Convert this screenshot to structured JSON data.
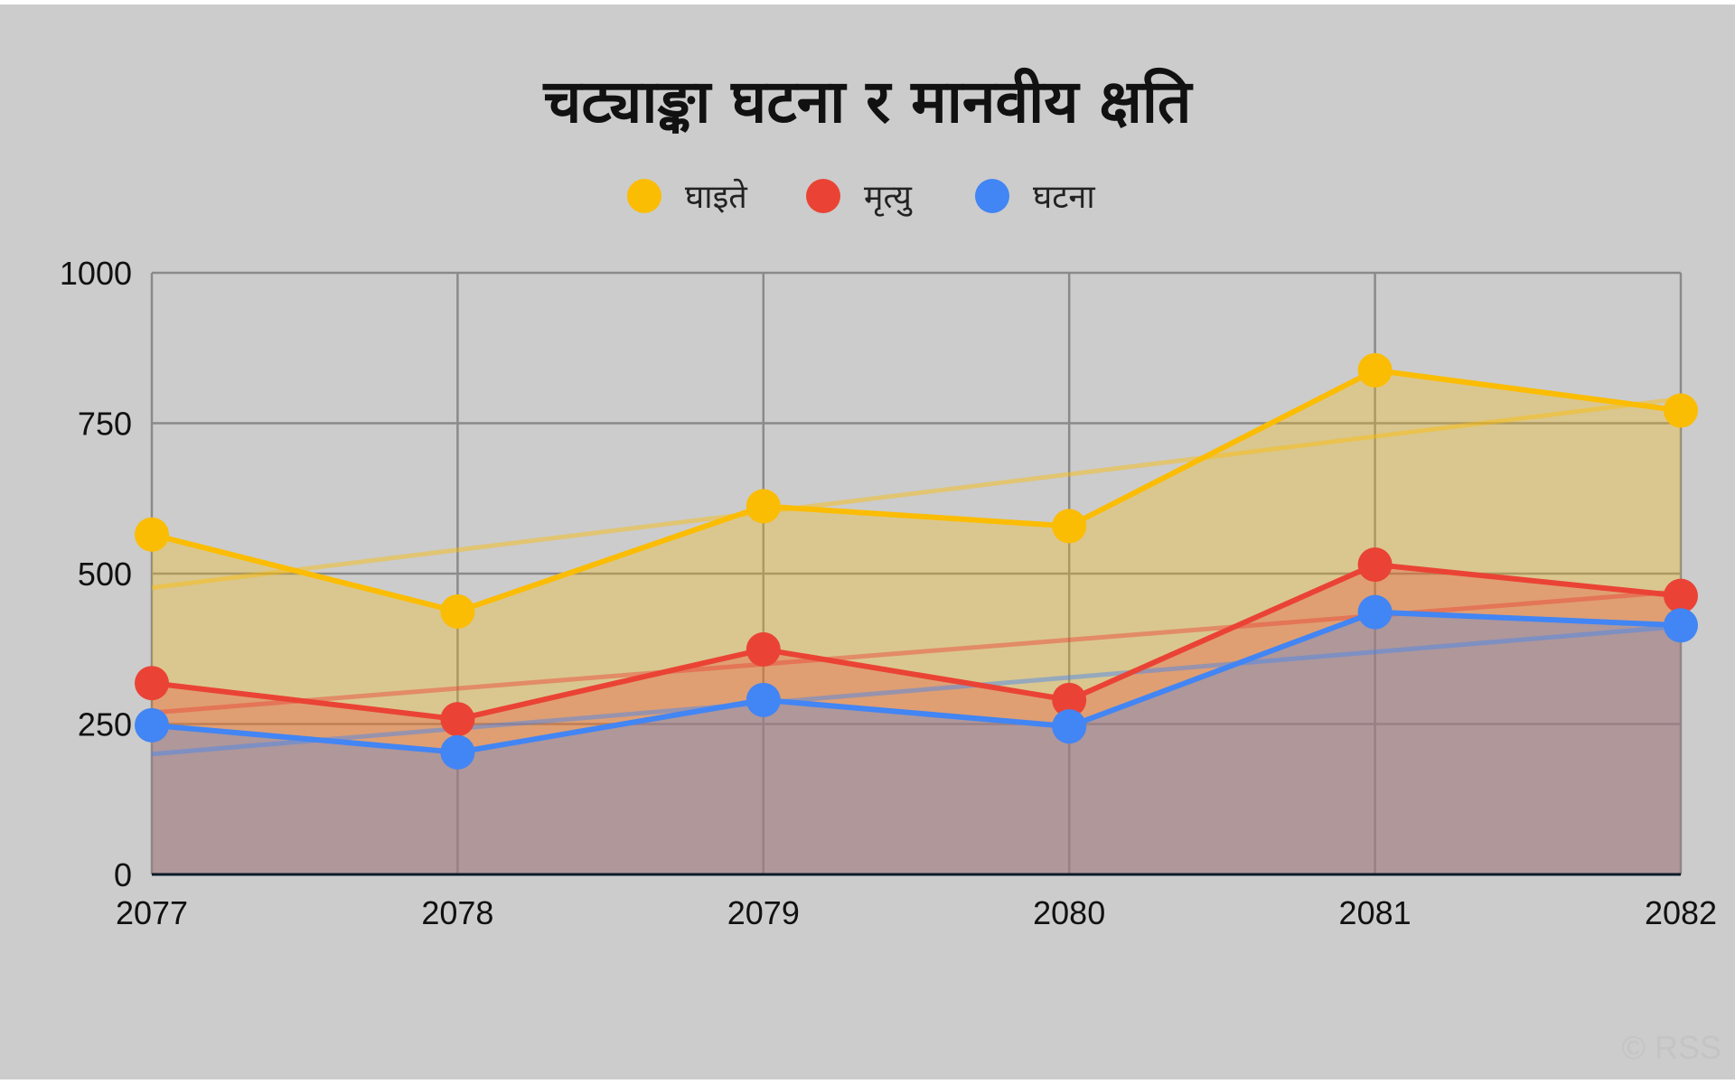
{
  "chart_data": {
    "type": "area",
    "title": "चट्याङ्का घटना र मानवीय क्षति",
    "xlabel": "",
    "ylabel": "",
    "x": [
      "2077",
      "2078",
      "2079",
      "2080",
      "2081",
      "2082"
    ],
    "ylim": [
      0,
      1000
    ],
    "yticks": [
      "0",
      "250",
      "500",
      "750",
      "1000"
    ],
    "stacked": false,
    "trendlines": true,
    "grid": true,
    "legend_position": "top",
    "series": [
      {
        "name": "घाइते",
        "color": "#fbbc04",
        "values": [
          565,
          437,
          612,
          579,
          838,
          771
        ]
      },
      {
        "name": "मृत्यु",
        "color": "#ea4335",
        "values": [
          318,
          258,
          374,
          290,
          515,
          463
        ]
      },
      {
        "name": "घटना",
        "color": "#4285f4",
        "values": [
          248,
          203,
          290,
          246,
          436,
          414
        ]
      }
    ]
  },
  "watermark": "© RSS"
}
